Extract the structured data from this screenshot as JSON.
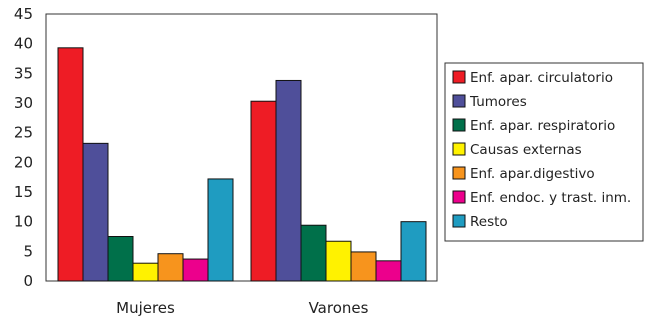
{
  "chart_data": {
    "type": "bar",
    "title": "",
    "xlabel": "",
    "ylabel": "",
    "categories": [
      "Mujeres",
      "Varones"
    ],
    "series": [
      {
        "name": "Enf. apar. circulatorio",
        "color": "#ee1c25",
        "values": [
          39.3,
          30.3
        ]
      },
      {
        "name": "Tumores",
        "color": "#4f4f9a",
        "values": [
          23.2,
          33.8
        ]
      },
      {
        "name": "Enf. apar. respiratorio",
        "color": "#00704a",
        "values": [
          7.5,
          9.4
        ]
      },
      {
        "name": "Causas externas",
        "color": "#fff200",
        "values": [
          3.0,
          6.7
        ]
      },
      {
        "name": "Enf. apar.digestivo",
        "color": "#f7941d",
        "values": [
          4.6,
          4.9
        ]
      },
      {
        "name": "Enf. endoc. y trast. inm.",
        "color": "#ec008c",
        "values": [
          3.7,
          3.4
        ]
      },
      {
        "name": "Resto",
        "color": "#1f9cc1",
        "values": [
          17.2,
          10.0
        ]
      }
    ],
    "ylim": [
      0,
      45
    ],
    "yticks": [
      0,
      5,
      10,
      15,
      20,
      25,
      30,
      35,
      40,
      45
    ],
    "grid": false,
    "legend_position": "right"
  }
}
